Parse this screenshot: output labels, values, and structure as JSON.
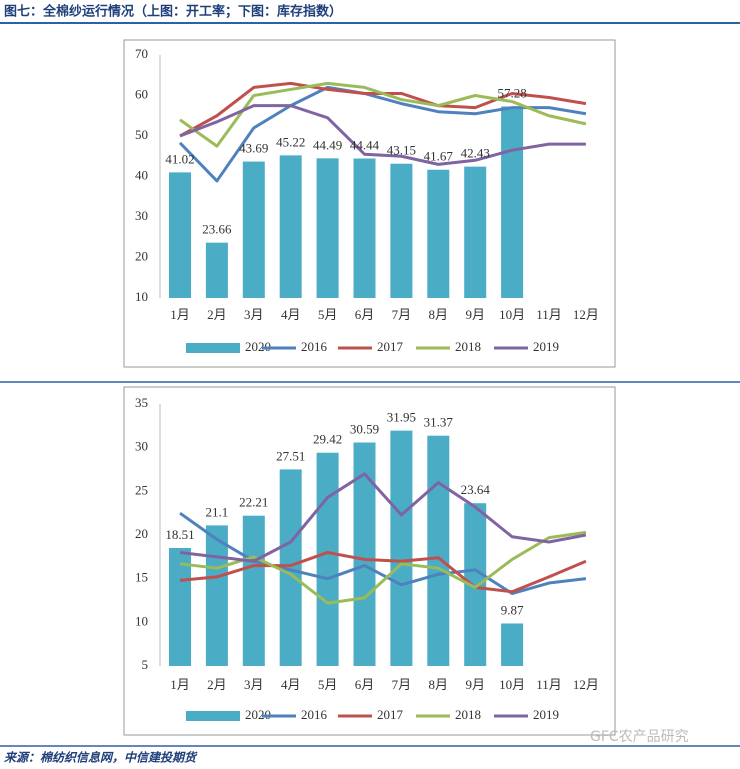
{
  "header": {
    "title": "图七：全棉纱运行情况（上图：开工率；下图：库存指数）"
  },
  "chart_data": [
    {
      "type": "bar",
      "categories": [
        "1月",
        "2月",
        "3月",
        "4月",
        "5月",
        "6月",
        "7月",
        "8月",
        "9月",
        "10月",
        "11月",
        "12月"
      ],
      "ylim": [
        10,
        70
      ],
      "yticks": [
        10,
        20,
        30,
        40,
        50,
        60,
        70
      ],
      "series": [
        {
          "name": "2020",
          "type": "bar",
          "color": "#4bacc6",
          "values": [
            41.02,
            23.66,
            43.69,
            45.22,
            44.49,
            44.44,
            43.15,
            41.67,
            42.43,
            57.28,
            null,
            null
          ]
        },
        {
          "name": "2016",
          "type": "line",
          "color": "#4f81bd",
          "values": [
            48.3,
            38.9,
            52,
            57.5,
            62,
            60.5,
            58,
            56,
            55.5,
            57,
            57,
            55.5
          ]
        },
        {
          "name": "2017",
          "type": "line",
          "color": "#c0504d",
          "values": [
            50,
            55,
            62,
            63,
            61.5,
            60.5,
            60.5,
            57.5,
            57,
            60.5,
            59.5,
            58
          ]
        },
        {
          "name": "2018",
          "type": "line",
          "color": "#9bbb59",
          "values": [
            54,
            47.5,
            60,
            61.5,
            63,
            62,
            59,
            57.5,
            60,
            58.5,
            55,
            53
          ]
        },
        {
          "name": "2019",
          "type": "line",
          "color": "#8064a2",
          "values": [
            50,
            53.5,
            57.5,
            57.5,
            54.5,
            45.5,
            45,
            43,
            44,
            46.5,
            48,
            48
          ]
        }
      ]
    },
    {
      "type": "bar",
      "categories": [
        "1月",
        "2月",
        "3月",
        "4月",
        "5月",
        "6月",
        "7月",
        "8月",
        "9月",
        "10月",
        "11月",
        "12月"
      ],
      "ylim": [
        5,
        35
      ],
      "yticks": [
        5,
        10,
        15,
        20,
        25,
        30,
        35
      ],
      "series": [
        {
          "name": "2020",
          "type": "bar",
          "color": "#4bacc6",
          "values": [
            18.51,
            21.1,
            22.21,
            27.51,
            29.42,
            30.59,
            31.95,
            31.37,
            23.64,
            9.87,
            null,
            null
          ]
        },
        {
          "name": "2016",
          "type": "line",
          "color": "#4f81bd",
          "values": [
            22.5,
            19.5,
            17,
            16,
            15,
            16.5,
            14.3,
            15.5,
            16,
            13.3,
            14.5,
            15
          ]
        },
        {
          "name": "2017",
          "type": "line",
          "color": "#c0504d",
          "values": [
            14.8,
            15.2,
            16.5,
            16.5,
            18,
            17.2,
            17,
            17.4,
            14,
            13.5,
            15.2,
            17
          ]
        },
        {
          "name": "2018",
          "type": "line",
          "color": "#9bbb59",
          "values": [
            16.7,
            16.2,
            17.5,
            15.5,
            12.2,
            12.8,
            16.7,
            16.2,
            14,
            17.2,
            19.7,
            20.3
          ]
        },
        {
          "name": "2019",
          "type": "line",
          "color": "#8064a2",
          "values": [
            18,
            17.5,
            17,
            19.2,
            24.3,
            27,
            22.3,
            26,
            23.2,
            19.8,
            19.2,
            20
          ]
        }
      ]
    }
  ],
  "footer": {
    "source": "来源：棉纺织信息网，中信建投期货",
    "watermark": "GFC农产品研究"
  }
}
